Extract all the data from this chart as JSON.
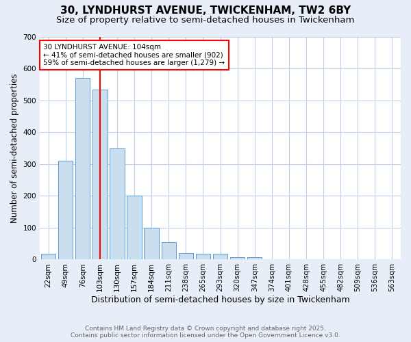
{
  "title1": "30, LYNDHURST AVENUE, TWICKENHAM, TW2 6BY",
  "title2": "Size of property relative to semi-detached houses in Twickenham",
  "xlabel": "Distribution of semi-detached houses by size in Twickenham",
  "ylabel": "Number of semi-detached properties",
  "categories": [
    "22sqm",
    "49sqm",
    "76sqm",
    "103sqm",
    "130sqm",
    "157sqm",
    "184sqm",
    "211sqm",
    "238sqm",
    "265sqm",
    "293sqm",
    "320sqm",
    "347sqm",
    "374sqm",
    "401sqm",
    "428sqm",
    "455sqm",
    "482sqm",
    "509sqm",
    "536sqm",
    "563sqm"
  ],
  "values": [
    18,
    310,
    570,
    535,
    350,
    200,
    100,
    55,
    20,
    18,
    18,
    7,
    7,
    0,
    0,
    0,
    0,
    0,
    0,
    0,
    0
  ],
  "bar_color": "#c9dff0",
  "bar_edge_color": "#5b9bd5",
  "property_index": 3,
  "property_line_color": "red",
  "annotation_line1": "30 LYNDHURST AVENUE: 104sqm",
  "annotation_line2": "← 41% of semi-detached houses are smaller (902)",
  "annotation_line3": "59% of semi-detached houses are larger (1,279) →",
  "annotation_box_color": "white",
  "annotation_box_edge": "red",
  "ylim": [
    0,
    700
  ],
  "yticks": [
    0,
    100,
    200,
    300,
    400,
    500,
    600,
    700
  ],
  "footer1": "Contains HM Land Registry data © Crown copyright and database right 2025.",
  "footer2": "Contains public sector information licensed under the Open Government Licence v3.0.",
  "bg_color": "#e8eef8",
  "plot_bg_color": "white",
  "grid_color": "#c0cee8",
  "title1_fontsize": 11,
  "title2_fontsize": 9.5,
  "xlabel_fontsize": 9,
  "ylabel_fontsize": 8.5,
  "tick_fontsize": 7.5,
  "annotation_fontsize": 7.5,
  "footer_fontsize": 6.5
}
